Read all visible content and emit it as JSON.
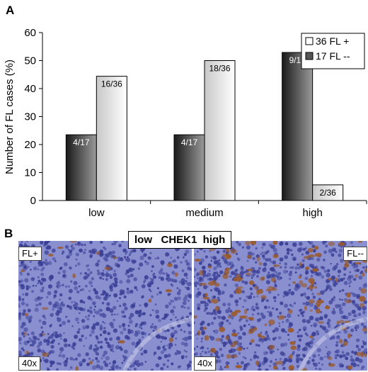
{
  "panel_a_label": "A",
  "panel_b_label": "B",
  "chart_data": {
    "type": "bar",
    "categories": [
      "low",
      "medium",
      "high"
    ],
    "ylabel": "Number of FL cases (%)",
    "xlabel": "",
    "ylim": [
      0,
      60
    ],
    "yticks": [
      0,
      10,
      20,
      30,
      40,
      50,
      60
    ],
    "grid": false,
    "legend_position": "top-right",
    "series": [
      {
        "name": "17 FL --",
        "values": [
          23.5,
          23.5,
          52.9
        ],
        "labels": [
          "4/17",
          "4/17",
          "9/17"
        ],
        "color": "#555555"
      },
      {
        "name": "36 FL +",
        "values": [
          44.4,
          50.0,
          5.6
        ],
        "labels": [
          "16/36",
          "18/36",
          "2/36"
        ],
        "color": "#f0f0f0"
      }
    ],
    "legend_order": [
      "36 FL +",
      "17 FL --"
    ]
  },
  "panel_b": {
    "caption": "low   CHEK1  high",
    "left_image_label": "FL+",
    "right_image_label": "FL--",
    "left_magnification": "40x",
    "right_magnification": "40x",
    "stain_colors": {
      "background": "#8a8fd0",
      "nuclei": "#3a3f95",
      "positive": "#9a5a2a"
    }
  }
}
